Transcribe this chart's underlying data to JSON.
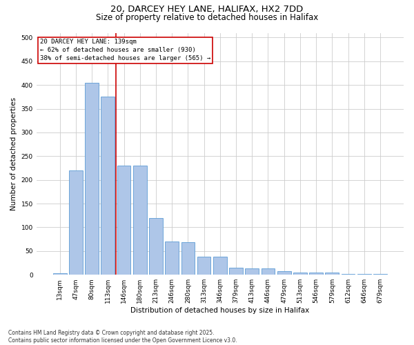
{
  "title_line1": "20, DARCEY HEY LANE, HALIFAX, HX2 7DD",
  "title_line2": "Size of property relative to detached houses in Halifax",
  "xlabel": "Distribution of detached houses by size in Halifax",
  "ylabel": "Number of detached properties",
  "categories": [
    "13sqm",
    "47sqm",
    "80sqm",
    "113sqm",
    "146sqm",
    "180sqm",
    "213sqm",
    "246sqm",
    "280sqm",
    "313sqm",
    "346sqm",
    "379sqm",
    "413sqm",
    "446sqm",
    "479sqm",
    "513sqm",
    "546sqm",
    "579sqm",
    "612sqm",
    "646sqm",
    "679sqm"
  ],
  "values": [
    3,
    220,
    405,
    375,
    230,
    230,
    120,
    70,
    68,
    38,
    38,
    15,
    13,
    13,
    7,
    5,
    5,
    5,
    2,
    2,
    2
  ],
  "bar_color": "#aec6e8",
  "bar_edge_color": "#5b9bd5",
  "vline_color": "#cc0000",
  "annotation_box_text": "20 DARCEY HEY LANE: 139sqm\n← 62% of detached houses are smaller (930)\n38% of semi-detached houses are larger (565) →",
  "annotation_box_color": "#cc0000",
  "annotation_box_fill": "#ffffff",
  "ylim": [
    0,
    510
  ],
  "yticks": [
    0,
    50,
    100,
    150,
    200,
    250,
    300,
    350,
    400,
    450,
    500
  ],
  "grid_color": "#cccccc",
  "background_color": "#ffffff",
  "footnote": "Contains HM Land Registry data © Crown copyright and database right 2025.\nContains public sector information licensed under the Open Government Licence v3.0.",
  "title_fontsize": 9.5,
  "subtitle_fontsize": 8.5,
  "axis_label_fontsize": 7.5,
  "tick_fontsize": 6.5,
  "annotation_fontsize": 6.5,
  "footnote_fontsize": 5.5
}
